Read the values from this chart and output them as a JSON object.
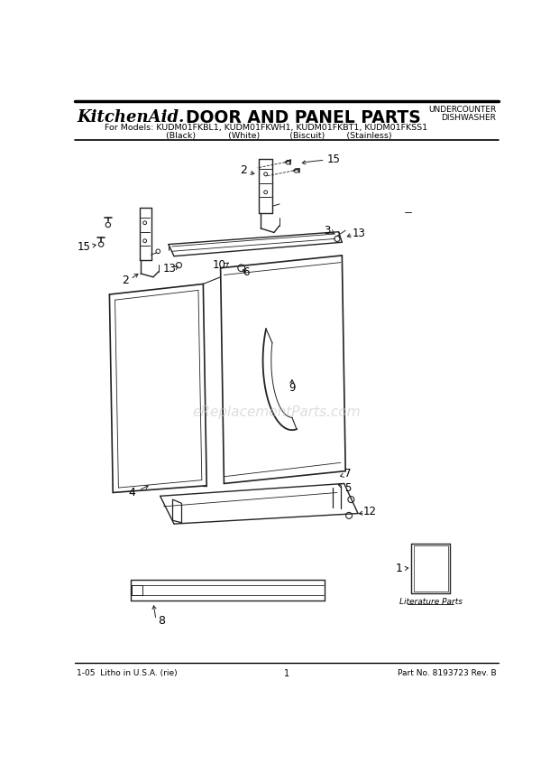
{
  "title_brand": "KitchenAid.",
  "title_main": "DOOR AND PANEL PARTS",
  "subtitle_line1": "For Models: KUDM01FKBL1, KUDM01FKWH1, KUDM01FKBT1, KUDM01FKSS1",
  "subtitle_line2": "          (Black)            (White)           (Biscuit)        (Stainless)",
  "top_right_line1": "UNDERCOUNTER",
  "top_right_line2": "DISHWASHER",
  "footer_left": "1-05  Litho in U.S.A. (rie)",
  "footer_center": "1",
  "footer_right": "Part No. 8193723 Rev. B",
  "watermark": "eReplacementParts.com",
  "literature_label": "Literature Parts",
  "bg_color": "#ffffff",
  "line_color": "#222222",
  "text_color": "#000000"
}
